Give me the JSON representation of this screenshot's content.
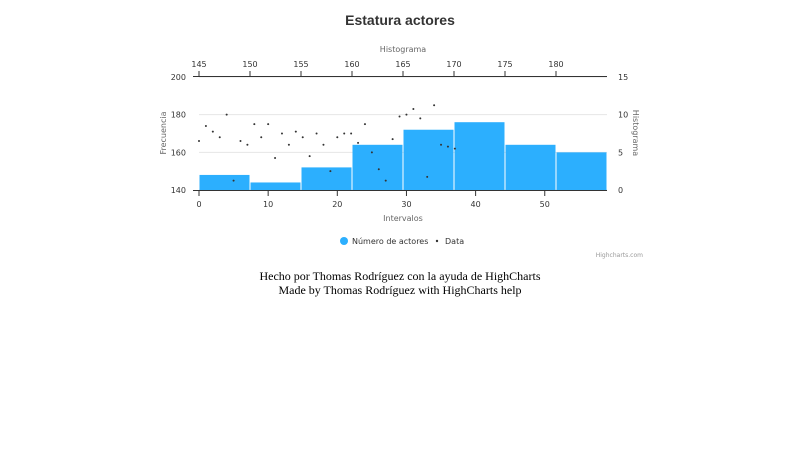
{
  "chart_data": {
    "type": "histogram",
    "title": "Estatura actores",
    "xaxis_top": {
      "title": "Histograma",
      "range": [
        145,
        185
      ],
      "ticks": [
        "145",
        "150",
        "155",
        "160",
        "165",
        "170",
        "175",
        "180"
      ]
    },
    "xaxis_bottom": {
      "title": "Intervalos",
      "range": [
        0,
        59
      ],
      "ticks": [
        "0",
        "10",
        "20",
        "30",
        "40",
        "50"
      ]
    },
    "yaxis_left": {
      "title": "Frecuencia",
      "range": [
        140,
        200
      ],
      "ticks": [
        "140",
        "160",
        "180",
        "200"
      ]
    },
    "yaxis_right": {
      "title": "Histograma",
      "range": [
        0,
        15
      ],
      "ticks": [
        "0",
        "5",
        "10",
        "15"
      ]
    },
    "legend": {
      "placement": "bottom-center"
    },
    "grid": true,
    "series": [
      {
        "name": "Número de actores",
        "type": "column",
        "color": "#2caffe",
        "bins": [
          {
            "x1": 145,
            "x2": 150,
            "y": 2
          },
          {
            "x1": 150,
            "x2": 155,
            "y": 1
          },
          {
            "x1": 155,
            "x2": 160,
            "y": 3
          },
          {
            "x1": 160,
            "x2": 165,
            "y": 6
          },
          {
            "x1": 165,
            "x2": 170,
            "y": 8
          },
          {
            "x1": 170,
            "x2": 175,
            "y": 9
          },
          {
            "x1": 175,
            "x2": 180,
            "y": 6
          },
          {
            "x1": 180,
            "x2": 185,
            "y": 5
          }
        ]
      },
      {
        "name": "Data",
        "type": "scatter",
        "color": "#333333",
        "points": [
          [
            0,
            166
          ],
          [
            1,
            174
          ],
          [
            2,
            171
          ],
          [
            3,
            168
          ],
          [
            4,
            180
          ],
          [
            5,
            145
          ],
          [
            6,
            166
          ],
          [
            7,
            164
          ],
          [
            8,
            175
          ],
          [
            9,
            168
          ],
          [
            10,
            175
          ],
          [
            11,
            157
          ],
          [
            12,
            170
          ],
          [
            13,
            164
          ],
          [
            14,
            171
          ],
          [
            15,
            168
          ],
          [
            16,
            158
          ],
          [
            17,
            170
          ],
          [
            18,
            164
          ],
          [
            19,
            150
          ],
          [
            20,
            168
          ],
          [
            21,
            170
          ],
          [
            22,
            170
          ],
          [
            23,
            165
          ],
          [
            24,
            175
          ],
          [
            25,
            160
          ],
          [
            26,
            151
          ],
          [
            27,
            145
          ],
          [
            28,
            167
          ],
          [
            29,
            179
          ],
          [
            30,
            180
          ],
          [
            31,
            183
          ],
          [
            32,
            178
          ],
          [
            33,
            147
          ],
          [
            34,
            185
          ],
          [
            35,
            164
          ],
          [
            36,
            163
          ],
          [
            37,
            162
          ]
        ]
      }
    ],
    "credits": "Highcharts.com"
  },
  "footer": {
    "line1": "Hecho por Thomas Rodríguez con la ayuda de HighCharts",
    "line2": "Made by Thomas Rodríguez with HighCharts help"
  }
}
